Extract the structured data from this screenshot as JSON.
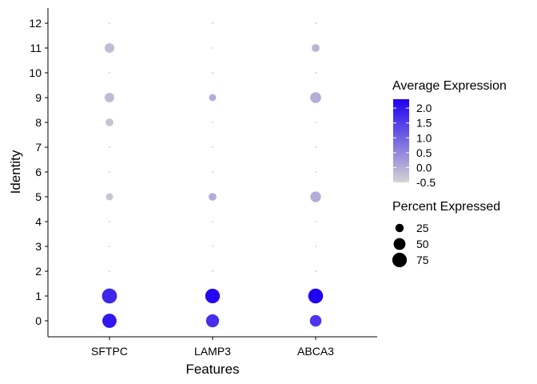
{
  "chart_data": {
    "type": "scatter",
    "subtype": "dot-plot",
    "xlabel": "Features",
    "ylabel": "Identity",
    "features": [
      "SFTPC",
      "LAMP3",
      "ABCA3"
    ],
    "identities": [
      "0",
      "1",
      "2",
      "3",
      "4",
      "5",
      "6",
      "7",
      "8",
      "9",
      "10",
      "11",
      "12"
    ],
    "points": [
      {
        "feature": "SFTPC",
        "identity": "0",
        "avg_exp": 2.0,
        "pct": 72
      },
      {
        "feature": "SFTPC",
        "identity": "1",
        "avg_exp": 1.8,
        "pct": 80
      },
      {
        "feature": "SFTPC",
        "identity": "2",
        "avg_exp": -0.5,
        "pct": 1
      },
      {
        "feature": "SFTPC",
        "identity": "3",
        "avg_exp": -0.5,
        "pct": 1
      },
      {
        "feature": "SFTPC",
        "identity": "4",
        "avg_exp": -0.5,
        "pct": 1
      },
      {
        "feature": "SFTPC",
        "identity": "5",
        "avg_exp": -0.3,
        "pct": 18
      },
      {
        "feature": "SFTPC",
        "identity": "6",
        "avg_exp": -0.5,
        "pct": 1
      },
      {
        "feature": "SFTPC",
        "identity": "7",
        "avg_exp": -0.5,
        "pct": 1
      },
      {
        "feature": "SFTPC",
        "identity": "8",
        "avg_exp": -0.3,
        "pct": 22
      },
      {
        "feature": "SFTPC",
        "identity": "9",
        "avg_exp": -0.2,
        "pct": 33
      },
      {
        "feature": "SFTPC",
        "identity": "10",
        "avg_exp": -0.5,
        "pct": 1
      },
      {
        "feature": "SFTPC",
        "identity": "11",
        "avg_exp": -0.2,
        "pct": 33
      },
      {
        "feature": "SFTPC",
        "identity": "12",
        "avg_exp": -0.5,
        "pct": 1
      },
      {
        "feature": "LAMP3",
        "identity": "0",
        "avg_exp": 1.7,
        "pct": 60
      },
      {
        "feature": "LAMP3",
        "identity": "1",
        "avg_exp": 2.2,
        "pct": 76
      },
      {
        "feature": "LAMP3",
        "identity": "2",
        "avg_exp": -0.5,
        "pct": 1
      },
      {
        "feature": "LAMP3",
        "identity": "3",
        "avg_exp": -0.5,
        "pct": 1
      },
      {
        "feature": "LAMP3",
        "identity": "4",
        "avg_exp": -0.5,
        "pct": 1
      },
      {
        "feature": "LAMP3",
        "identity": "5",
        "avg_exp": 0.0,
        "pct": 22
      },
      {
        "feature": "LAMP3",
        "identity": "6",
        "avg_exp": -0.5,
        "pct": 1
      },
      {
        "feature": "LAMP3",
        "identity": "7",
        "avg_exp": -0.5,
        "pct": 1
      },
      {
        "feature": "LAMP3",
        "identity": "8",
        "avg_exp": -0.5,
        "pct": 1
      },
      {
        "feature": "LAMP3",
        "identity": "9",
        "avg_exp": 0.0,
        "pct": 18
      },
      {
        "feature": "LAMP3",
        "identity": "10",
        "avg_exp": -0.5,
        "pct": 1
      },
      {
        "feature": "LAMP3",
        "identity": "11",
        "avg_exp": -0.5,
        "pct": 1
      },
      {
        "feature": "LAMP3",
        "identity": "12",
        "avg_exp": -0.5,
        "pct": 1
      },
      {
        "feature": "ABCA3",
        "identity": "0",
        "avg_exp": 1.6,
        "pct": 48
      },
      {
        "feature": "ABCA3",
        "identity": "1",
        "avg_exp": 2.3,
        "pct": 78
      },
      {
        "feature": "ABCA3",
        "identity": "2",
        "avg_exp": -0.5,
        "pct": 1
      },
      {
        "feature": "ABCA3",
        "identity": "3",
        "avg_exp": -0.5,
        "pct": 1
      },
      {
        "feature": "ABCA3",
        "identity": "4",
        "avg_exp": -0.5,
        "pct": 1
      },
      {
        "feature": "ABCA3",
        "identity": "5",
        "avg_exp": 0.0,
        "pct": 40
      },
      {
        "feature": "ABCA3",
        "identity": "6",
        "avg_exp": -0.5,
        "pct": 1
      },
      {
        "feature": "ABCA3",
        "identity": "7",
        "avg_exp": -0.5,
        "pct": 1
      },
      {
        "feature": "ABCA3",
        "identity": "8",
        "avg_exp": -0.5,
        "pct": 1
      },
      {
        "feature": "ABCA3",
        "identity": "9",
        "avg_exp": 0.0,
        "pct": 42
      },
      {
        "feature": "ABCA3",
        "identity": "10",
        "avg_exp": -0.5,
        "pct": 1
      },
      {
        "feature": "ABCA3",
        "identity": "11",
        "avg_exp": -0.1,
        "pct": 22
      },
      {
        "feature": "ABCA3",
        "identity": "12",
        "avg_exp": -0.5,
        "pct": 1
      }
    ],
    "color_legend": {
      "title": "Average Expression",
      "ticks": [
        "2.0",
        "1.5",
        "1.0",
        "0.5",
        "0.0",
        "-0.5"
      ],
      "tick_values": [
        2.0,
        1.5,
        1.0,
        0.5,
        0.0,
        -0.5
      ],
      "range": [
        -0.5,
        2.3
      ],
      "low_color": "#d3d3d3",
      "high_color": "#1f00f0"
    },
    "size_legend": {
      "title": "Percent Expressed",
      "labels": [
        "25",
        "50",
        "75"
      ],
      "values": [
        25,
        50,
        75
      ]
    },
    "grid": false,
    "legend_position": "right"
  }
}
